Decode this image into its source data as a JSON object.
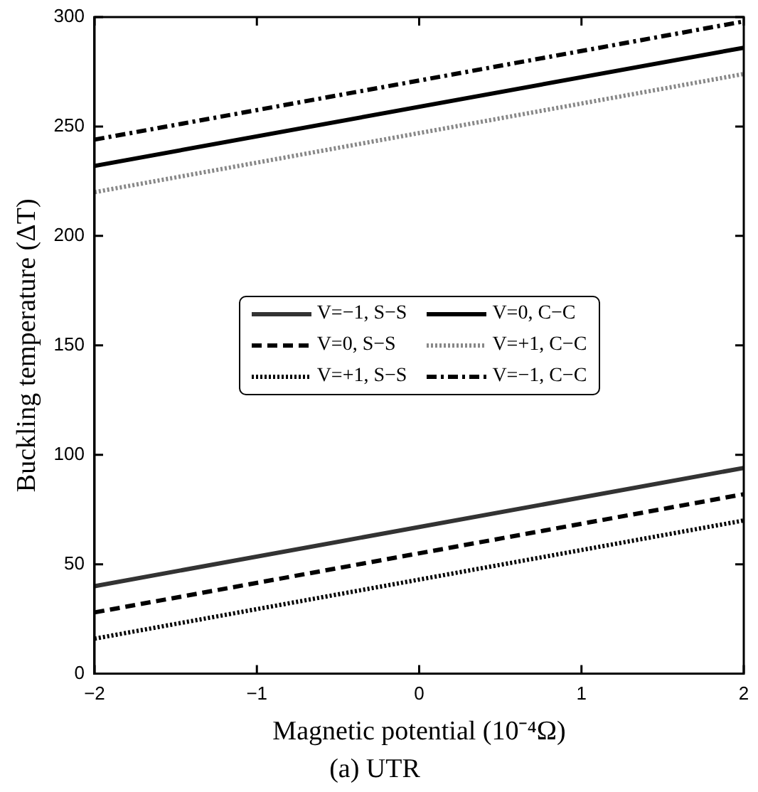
{
  "chart_data": {
    "type": "line",
    "title": "(a) UTR",
    "xlabel": "Magnetic potential (10⁻⁴Ω)",
    "ylabel": "Buckling temperature (ΔT)",
    "x": [
      -2,
      2
    ],
    "xlim": [
      -2,
      2
    ],
    "xticks": [
      -2,
      -1,
      0,
      1,
      2
    ],
    "ylim": [
      0,
      300
    ],
    "yticks": [
      0,
      50,
      100,
      150,
      200,
      250,
      300
    ],
    "grid": false,
    "legend": "center",
    "marker": "none",
    "series": [
      {
        "name": "V=−1, S−S",
        "color": "#333333",
        "line_style": "solid",
        "values": [
          40,
          94
        ]
      },
      {
        "name": "V=0, C−C",
        "color": "#000000",
        "line_style": "solid",
        "values": [
          232,
          286
        ]
      },
      {
        "name": "V=0, S−S",
        "color": "#000000",
        "line_style": "dashed",
        "values": [
          28,
          82
        ]
      },
      {
        "name": "V=+1, C−C",
        "color": "#888888",
        "line_style": "dotted",
        "values": [
          220,
          274
        ]
      },
      {
        "name": "V=+1, S−S",
        "color": "#000000",
        "line_style": "dotted",
        "values": [
          16,
          70
        ]
      },
      {
        "name": "V=−1, C−C",
        "color": "#000000",
        "line_style": "dashdot",
        "values": [
          244,
          298
        ]
      }
    ]
  }
}
